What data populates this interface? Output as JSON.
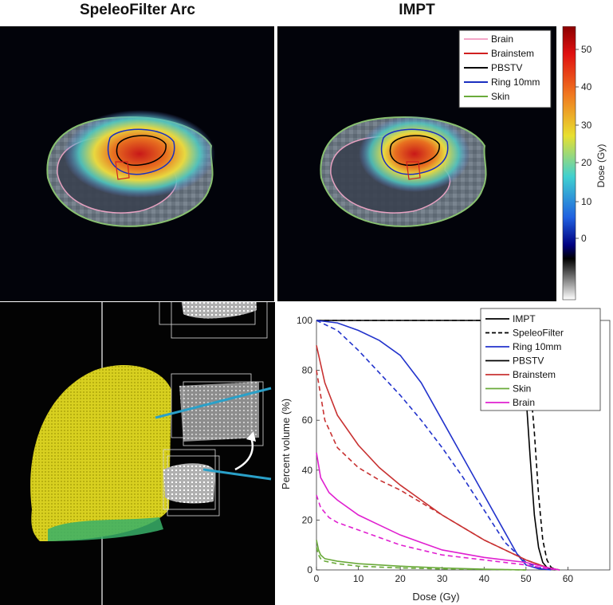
{
  "titles": {
    "left": "SpeleoFilter Arc",
    "right": "IMPT"
  },
  "legend_top": [
    {
      "label": "Brain",
      "color": "#f4a6c8"
    },
    {
      "label": "Brainstem",
      "color": "#d02020"
    },
    {
      "label": "PBSTV",
      "color": "#000000"
    },
    {
      "label": "Ring 10mm",
      "color": "#1a2fc0"
    },
    {
      "label": "Skin",
      "color": "#6aaa3a"
    }
  ],
  "colorbar": {
    "label": "Dose (Gy)",
    "ticks": [
      "50",
      "40",
      "30",
      "20",
      "10",
      "0"
    ]
  },
  "chart_data": {
    "type": "line",
    "xlabel": "Dose (Gy)",
    "ylabel": "Percent volume (%)",
    "xlim": [
      0,
      70
    ],
    "ylim": [
      0,
      100
    ],
    "xticks": [
      "0",
      "10",
      "20",
      "30",
      "40",
      "50",
      "60"
    ],
    "yticks": [
      "0",
      "20",
      "40",
      "60",
      "80",
      "100"
    ],
    "grid": false,
    "legend_position": "top-right",
    "legend": [
      {
        "label": "IMPT",
        "color": "#000000",
        "dash": false
      },
      {
        "label": "SpeleoFilter",
        "color": "#000000",
        "dash": true
      },
      {
        "label": "Ring 10mm",
        "color": "#2233cc",
        "dash": false
      },
      {
        "label": "PBSTV",
        "color": "#000000",
        "dash": false
      },
      {
        "label": "Brainstem",
        "color": "#c83232",
        "dash": false
      },
      {
        "label": "Skin",
        "color": "#6aaa3a",
        "dash": false
      },
      {
        "label": "Brain",
        "color": "#e020d0",
        "dash": false
      }
    ],
    "series": [
      {
        "name": "PBSTV",
        "plan": "IMPT",
        "color": "#000000",
        "dash": false,
        "x": [
          0,
          44,
          46,
          47,
          48,
          49,
          50,
          51,
          52,
          53,
          54,
          55,
          56,
          57
        ],
        "y": [
          100,
          100,
          99.5,
          98,
          94,
          85,
          70,
          45,
          22,
          9,
          3,
          1,
          0.3,
          0
        ]
      },
      {
        "name": "PBSTV",
        "plan": "SpeleoFilter",
        "color": "#000000",
        "dash": true,
        "x": [
          0,
          45,
          47,
          48,
          49,
          50,
          51,
          52,
          53,
          54,
          55,
          56,
          57,
          58
        ],
        "y": [
          100,
          100,
          99.5,
          98,
          95,
          88,
          75,
          55,
          30,
          12,
          4,
          1,
          0.3,
          0
        ]
      },
      {
        "name": "Ring 10mm",
        "plan": "IMPT",
        "color": "#2233cc",
        "dash": false,
        "x": [
          0,
          5,
          10,
          15,
          20,
          25,
          30,
          35,
          40,
          45,
          48,
          50,
          53,
          56
        ],
        "y": [
          100,
          99,
          96,
          92,
          86,
          75,
          60,
          45,
          30,
          15,
          6,
          2,
          0.5,
          0
        ]
      },
      {
        "name": "Ring 10mm",
        "plan": "SpeleoFilter",
        "color": "#2233cc",
        "dash": true,
        "x": [
          0,
          5,
          10,
          15,
          20,
          25,
          30,
          35,
          40,
          45,
          50,
          53,
          56
        ],
        "y": [
          100,
          96,
          88,
          79,
          70,
          60,
          49,
          37,
          24,
          11,
          3,
          1,
          0
        ]
      },
      {
        "name": "Brainstem",
        "plan": "IMPT",
        "color": "#c83232",
        "dash": false,
        "x": [
          0,
          2,
          5,
          10,
          15,
          20,
          25,
          30,
          35,
          40,
          45,
          50,
          55,
          58
        ],
        "y": [
          90,
          75,
          62,
          50,
          41,
          34,
          28,
          22,
          17,
          12,
          8,
          4,
          1,
          0
        ]
      },
      {
        "name": "Brainstem",
        "plan": "SpeleoFilter",
        "color": "#c83232",
        "dash": true,
        "x": [
          0,
          2,
          5,
          10,
          15,
          20,
          25,
          30,
          35,
          40,
          45,
          50,
          55,
          58
        ],
        "y": [
          80,
          60,
          49,
          41,
          36,
          32,
          27,
          22,
          17,
          12,
          8,
          4,
          1,
          0
        ]
      },
      {
        "name": "Skin",
        "plan": "IMPT",
        "color": "#6aaa3a",
        "dash": false,
        "x": [
          0,
          0.5,
          1,
          2,
          5,
          10,
          20,
          30,
          40,
          50
        ],
        "y": [
          12,
          8,
          6,
          4.5,
          3.5,
          2.5,
          1.5,
          0.8,
          0.3,
          0
        ]
      },
      {
        "name": "Skin",
        "plan": "SpeleoFilter",
        "color": "#6aaa3a",
        "dash": true,
        "x": [
          0,
          0.5,
          1,
          2,
          5,
          10,
          20,
          30,
          40,
          50
        ],
        "y": [
          9,
          6,
          4.5,
          3.5,
          2.5,
          1.5,
          0.8,
          0.4,
          0.2,
          0
        ]
      },
      {
        "name": "Brain",
        "plan": "IMPT",
        "color": "#e020d0",
        "dash": false,
        "x": [
          0,
          1,
          3,
          5,
          10,
          15,
          20,
          25,
          30,
          40,
          50,
          55,
          58
        ],
        "y": [
          47,
          37,
          31,
          28,
          22,
          18,
          14,
          11,
          8,
          5,
          3,
          1,
          0
        ]
      },
      {
        "name": "Brain",
        "plan": "SpeleoFilter",
        "color": "#e020d0",
        "dash": true,
        "x": [
          0,
          1,
          3,
          5,
          10,
          15,
          20,
          25,
          30,
          40,
          50,
          55,
          58
        ],
        "y": [
          30,
          25,
          21,
          19,
          16,
          13,
          10,
          8,
          6,
          4,
          2,
          0.5,
          0
        ]
      }
    ]
  }
}
